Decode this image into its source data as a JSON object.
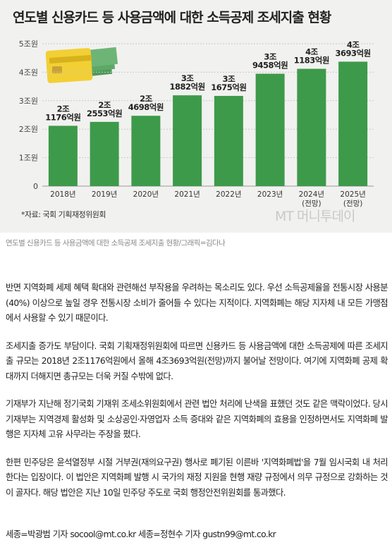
{
  "chart_data": {
    "type": "bar",
    "title": "연도별 신용카드 등 사용금액에 대한 소득공제 조세지출 현황",
    "ylim": [
      0,
      5
    ],
    "yticks": [
      "0",
      "1조원",
      "2조원",
      "3조원",
      "4조원",
      "5조원"
    ],
    "categories": [
      "2018년",
      "2019년",
      "2020년",
      "2021년",
      "2022년",
      "2023년",
      "2024년\n(전망)",
      "2025년\n(전망)"
    ],
    "values": [
      2.1176,
      2.2553,
      2.4698,
      3.1882,
      3.1675,
      3.9458,
      4.1183,
      4.3693
    ],
    "value_labels": [
      "2조\n1176억원",
      "2조\n2553억원",
      "2조\n4698억원",
      "3조\n1882억원",
      "3조\n1675억원",
      "3조\n9458억원",
      "4조\n1183억원",
      "4조\n3693억원"
    ],
    "grid": true,
    "bar_color": "#3d9a4a",
    "source": "*자료: 국회 기획재정위원회"
  },
  "figure": {
    "watermark": "MT 머니투데이",
    "caption": "연도별 신용카드 등 사용금액에 대한 소득공제 조세지출 현황/그래픽=김다나"
  },
  "article": {
    "paragraphs": [
      "반면 지역화폐 세제 혜택 확대와 관련해선 부작용을 우려하는 목소리도 있다. 우선 소득공제율을 전통시장 사용분(40%) 이상으로 높일 경우 전통시장 소비가 줄어들 수 있다는 지적이다. 지역화폐는 해당 지자체 내 모든 가맹점에서 사용할 수 있기 때문이다.",
      "조세지출 증가도 부담이다. 국회 기획재정위원회에 따르면 신용카드 등 사용금액에 대한 소득공제에 따른 조세지출 규모는 2018년 2조1176억원에서 올해 4조3693억원(전망)까지 불어날 전망이다. 여기에 지역화폐 공제 확대까지 더해지면 총규모는 더욱 커질 수밖에 없다.",
      "기재부가 지난해 정기국회 기재위 조세소위원회에서 관련 법안 처리에 난색을 표했던 것도 같은 맥락이었다. 당시 기재부는 지역경제 활성화 및 소상공인·자영업자 소득 증대와 같은 지역화폐의 효용을 인정하면서도 지역화폐 발행은 지자체 고유 사무라는 주장을 폈다.",
      "한편 민주당은 윤석열정부 시절 거부권(재의요구권) 행사로 폐기된 이른바 '지역화폐법'을 7월 임시국회 내 처리한다는 입장이다. 이 법안은 지역화폐 발행 시 국가의 재정 지원을 현행 재량 규정에서 의무 규정으로 강화하는 것이 골자다. 해당 법안은 지난 10일 민주당 주도로 국회 행정안전위원회를 통과했다."
    ],
    "byline": "세종=박광범 기자 socool@mt.co.kr 세종=정현수 기자 gustn99@mt.co.kr"
  }
}
